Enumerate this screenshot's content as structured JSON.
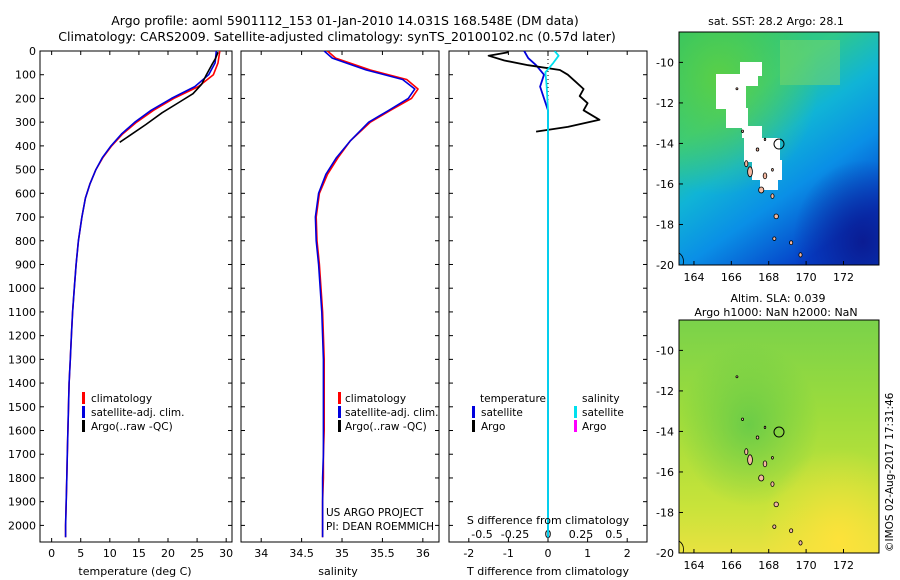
{
  "header": {
    "line1": "Argo profile: aoml 5901112_153 01-Jan-2010 14.031S 168.548E (DM data)",
    "line2": "Climatology: CARS2009. Satellite-adjusted climatology: synTS_20100102.nc (0.57d later)"
  },
  "credits": {
    "project": "US ARGO PROJECT",
    "pi": "PI: DEAN ROEMMICH",
    "watermark": "©IMOS 02-Aug-2017 17:31:46"
  },
  "colors": {
    "climatology": "#ff0000",
    "satellite": "#0000dd",
    "argo": "#000000",
    "sal_satellite": "#00e0ee",
    "sal_argo": "#ff00ff"
  },
  "legend_profile": {
    "climatology": "climatology",
    "satellite": "satellite-adj. clim.",
    "argo": "Argo(..raw -QC)"
  },
  "legend_diff": {
    "temperature_header": "temperature",
    "salinity_header": "salinity",
    "t_satellite": "satellite",
    "t_argo": "Argo",
    "s_satellite": "satellite",
    "s_argo": "Argo"
  },
  "chart_data": [
    {
      "type": "line",
      "id": "temperature",
      "xlabel": "temperature (deg C)",
      "xlim": [
        -2,
        31
      ],
      "xticks": [
        0,
        5,
        10,
        15,
        20,
        25,
        30
      ],
      "ylim": [
        0,
        2070
      ],
      "yticks": [
        0,
        100,
        200,
        300,
        400,
        500,
        600,
        700,
        800,
        900,
        1000,
        1100,
        1200,
        1300,
        1400,
        1500,
        1600,
        1700,
        1800,
        1900,
        2000
      ],
      "series": [
        {
          "name": "climatology",
          "color": "#ff0000",
          "points": [
            [
              28.9,
              0
            ],
            [
              28.6,
              50
            ],
            [
              27.8,
              100
            ],
            [
              25.2,
              150
            ],
            [
              21.0,
              200
            ],
            [
              17.5,
              250
            ],
            [
              14.6,
              300
            ],
            [
              12.2,
              350
            ],
            [
              10.3,
              400
            ],
            [
              8.8,
              450
            ],
            [
              7.6,
              500
            ],
            [
              6.6,
              560
            ],
            [
              5.8,
              620
            ],
            [
              5.2,
              700
            ],
            [
              4.6,
              800
            ],
            [
              4.2,
              900
            ],
            [
              3.9,
              1000
            ],
            [
              3.6,
              1100
            ],
            [
              3.4,
              1200
            ],
            [
              3.2,
              1300
            ],
            [
              3.0,
              1400
            ],
            [
              2.9,
              1500
            ],
            [
              2.8,
              1600
            ],
            [
              2.7,
              1700
            ],
            [
              2.6,
              1800
            ],
            [
              2.5,
              1900
            ],
            [
              2.4,
              2000
            ],
            [
              2.4,
              2050
            ]
          ]
        },
        {
          "name": "satellite-adj. clim.",
          "color": "#0000dd",
          "points": [
            [
              28.3,
              0
            ],
            [
              28.1,
              50
            ],
            [
              27.0,
              100
            ],
            [
              24.6,
              150
            ],
            [
              20.6,
              200
            ],
            [
              17.1,
              250
            ],
            [
              14.3,
              300
            ],
            [
              12.0,
              350
            ],
            [
              10.2,
              400
            ],
            [
              8.7,
              450
            ],
            [
              7.6,
              500
            ],
            [
              6.6,
              560
            ],
            [
              5.8,
              620
            ],
            [
              5.2,
              700
            ],
            [
              4.6,
              800
            ],
            [
              4.2,
              900
            ],
            [
              3.9,
              1000
            ],
            [
              3.6,
              1100
            ],
            [
              3.4,
              1200
            ],
            [
              3.2,
              1300
            ],
            [
              3.0,
              1400
            ],
            [
              2.9,
              1500
            ],
            [
              2.8,
              1600
            ],
            [
              2.7,
              1700
            ],
            [
              2.6,
              1800
            ],
            [
              2.5,
              1900
            ],
            [
              2.4,
              2000
            ],
            [
              2.4,
              2050
            ]
          ]
        },
        {
          "name": "Argo(..raw -QC)",
          "color": "#000000",
          "points": [
            [
              28.6,
              5
            ],
            [
              28.2,
              30
            ],
            [
              27.5,
              60
            ],
            [
              26.6,
              100
            ],
            [
              25.8,
              140
            ],
            [
              24.3,
              180
            ],
            [
              22.0,
              215
            ],
            [
              19.0,
              260
            ],
            [
              16.2,
              310
            ],
            [
              13.5,
              355
            ],
            [
              11.7,
              385
            ]
          ]
        }
      ]
    },
    {
      "type": "line",
      "id": "salinity",
      "xlabel": "salinity",
      "xlim": [
        33.75,
        36.2
      ],
      "xticks": [
        34,
        34.5,
        35,
        35.5,
        36
      ],
      "ylim": [
        0,
        2070
      ],
      "series": [
        {
          "name": "climatology",
          "color": "#ff0000",
          "points": [
            [
              34.82,
              0
            ],
            [
              34.92,
              30
            ],
            [
              35.35,
              80
            ],
            [
              35.8,
              120
            ],
            [
              35.94,
              160
            ],
            [
              35.86,
              200
            ],
            [
              35.6,
              250
            ],
            [
              35.35,
              300
            ],
            [
              35.1,
              380
            ],
            [
              34.95,
              450
            ],
            [
              34.82,
              520
            ],
            [
              34.72,
              600
            ],
            [
              34.68,
              700
            ],
            [
              34.69,
              800
            ],
            [
              34.72,
              900
            ],
            [
              34.74,
              1000
            ],
            [
              34.76,
              1100
            ],
            [
              34.77,
              1200
            ],
            [
              34.78,
              1300
            ],
            [
              34.78,
              1400
            ],
            [
              34.78,
              1500
            ],
            [
              34.78,
              1600
            ],
            [
              34.77,
              1700
            ],
            [
              34.77,
              1800
            ],
            [
              34.76,
              1900
            ],
            [
              34.76,
              2000
            ],
            [
              34.76,
              2050
            ]
          ]
        },
        {
          "name": "satellite-adj. clim.",
          "color": "#0000dd",
          "points": [
            [
              34.78,
              0
            ],
            [
              34.88,
              30
            ],
            [
              35.3,
              80
            ],
            [
              35.75,
              120
            ],
            [
              35.9,
              160
            ],
            [
              35.82,
              200
            ],
            [
              35.58,
              250
            ],
            [
              35.33,
              300
            ],
            [
              35.1,
              380
            ],
            [
              34.93,
              450
            ],
            [
              34.8,
              520
            ],
            [
              34.71,
              600
            ],
            [
              34.67,
              700
            ],
            [
              34.68,
              800
            ],
            [
              34.71,
              900
            ],
            [
              34.73,
              1000
            ],
            [
              34.75,
              1100
            ],
            [
              34.76,
              1200
            ],
            [
              34.77,
              1300
            ],
            [
              34.77,
              1400
            ],
            [
              34.77,
              1500
            ],
            [
              34.77,
              1600
            ],
            [
              34.77,
              1700
            ],
            [
              34.76,
              1800
            ],
            [
              34.76,
              1900
            ],
            [
              34.76,
              2000
            ],
            [
              34.76,
              2050
            ]
          ]
        }
      ]
    },
    {
      "type": "line",
      "id": "difference",
      "xlabel": "T difference from climatology",
      "xlabel_top": "S difference from climatology",
      "xlim": [
        -2.5,
        2.5
      ],
      "xticks": [
        -2,
        -1,
        0,
        1,
        2
      ],
      "xlim_top": [
        -0.75,
        0.75
      ],
      "xticks_top": [
        -0.5,
        -0.25,
        0,
        0.25,
        0.5
      ],
      "ylim": [
        0,
        2070
      ],
      "series": [
        {
          "name": "T satellite",
          "color": "#0000dd",
          "scale": "T",
          "points": [
            [
              -0.6,
              0
            ],
            [
              -0.5,
              30
            ],
            [
              -0.3,
              60
            ],
            [
              -0.1,
              100
            ],
            [
              -0.2,
              150
            ],
            [
              -0.1,
              200
            ],
            [
              0.0,
              250
            ],
            [
              0.0,
              300
            ],
            [
              0.0,
              400
            ],
            [
              0.0,
              500
            ],
            [
              0.0,
              700
            ],
            [
              0.0,
              1000
            ],
            [
              0.0,
              2050
            ]
          ]
        },
        {
          "name": "T Argo",
          "color": "#000000",
          "scale": "T",
          "points": [
            [
              -1.0,
              5
            ],
            [
              -1.5,
              20
            ],
            [
              -1.1,
              40
            ],
            [
              -0.5,
              60
            ],
            [
              0.3,
              80
            ],
            [
              0.5,
              100
            ],
            [
              0.7,
              130
            ],
            [
              0.9,
              160
            ],
            [
              0.8,
              190
            ],
            [
              1.0,
              220
            ],
            [
              0.9,
              250
            ],
            [
              1.3,
              290
            ],
            [
              0.5,
              320
            ],
            [
              -0.3,
              340
            ]
          ]
        },
        {
          "name": "S satellite",
          "color": "#00e0ee",
          "scale": "S",
          "points": [
            [
              0.05,
              0
            ],
            [
              0.08,
              20
            ],
            [
              0.04,
              50
            ],
            [
              -0.02,
              90
            ],
            [
              -0.01,
              150
            ],
            [
              0.0,
              250
            ],
            [
              0.0,
              400
            ],
            [
              0.0,
              600
            ],
            [
              0.0,
              1000
            ],
            [
              0.0,
              2050
            ]
          ]
        }
      ]
    },
    {
      "type": "heatmap",
      "id": "sst_map",
      "title": "sat. SST: 28.2 Argo: 28.1",
      "xticks": [
        164,
        166,
        168,
        170,
        172
      ],
      "yticks": [
        -10,
        -12,
        -14,
        -16,
        -18,
        -20
      ],
      "xlim": [
        163.2,
        173.9
      ],
      "ylim": [
        -20,
        -8.5
      ],
      "argo_position": [
        168.55,
        -14.03
      ]
    },
    {
      "type": "heatmap",
      "id": "sla_map",
      "title_line1": "Altim. SLA: 0.039",
      "title_line2": "Argo h1000: NaN h2000: NaN",
      "xticks": [
        164,
        166,
        168,
        170,
        172
      ],
      "yticks": [
        -10,
        -12,
        -14,
        -16,
        -18,
        -20
      ],
      "xlim": [
        163.2,
        173.9
      ],
      "ylim": [
        -20,
        -8.5
      ],
      "argo_position": [
        168.55,
        -14.03
      ]
    }
  ]
}
